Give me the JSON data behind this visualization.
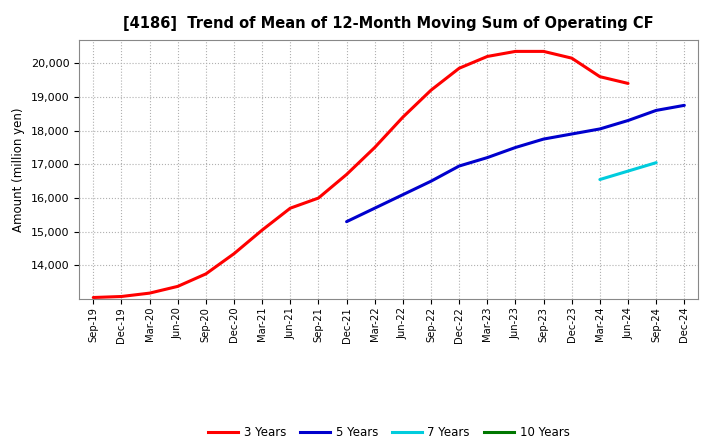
{
  "title": "[4186]  Trend of Mean of 12-Month Moving Sum of Operating CF",
  "ylabel": "Amount (million yen)",
  "background_color": "#ffffff",
  "grid_color": "#b0b0b0",
  "ylim": [
    13000,
    20700
  ],
  "yticks": [
    14000,
    15000,
    16000,
    17000,
    18000,
    19000,
    20000
  ],
  "x_labels": [
    "Sep-19",
    "Dec-19",
    "Mar-20",
    "Jun-20",
    "Sep-20",
    "Dec-20",
    "Mar-21",
    "Jun-21",
    "Sep-21",
    "Dec-21",
    "Mar-22",
    "Jun-22",
    "Sep-22",
    "Dec-22",
    "Mar-23",
    "Jun-23",
    "Sep-23",
    "Dec-23",
    "Mar-24",
    "Jun-24",
    "Sep-24",
    "Dec-24"
  ],
  "series_3y": {
    "label": "3 Years",
    "color": "#ff0000",
    "values": [
      13050,
      13080,
      13180,
      13380,
      13750,
      14350,
      15050,
      15700,
      16000,
      16700,
      17500,
      18400,
      19200,
      19850,
      20200,
      20350,
      20350,
      20150,
      19600,
      19400,
      null,
      null
    ]
  },
  "series_5y": {
    "label": "5 Years",
    "color": "#0000cd",
    "values": [
      null,
      null,
      null,
      null,
      null,
      null,
      null,
      null,
      null,
      15300,
      15700,
      16100,
      16500,
      16950,
      17200,
      17500,
      17750,
      17900,
      18050,
      18300,
      18600,
      18750
    ]
  },
  "series_7y": {
    "label": "7 Years",
    "color": "#00ccdd",
    "values": [
      null,
      null,
      null,
      null,
      null,
      null,
      null,
      null,
      null,
      null,
      null,
      null,
      null,
      null,
      null,
      null,
      null,
      null,
      16550,
      16800,
      17050,
      null
    ]
  },
  "series_10y": {
    "label": "10 Years",
    "color": "#007700",
    "values": [
      null,
      null,
      null,
      null,
      null,
      null,
      null,
      null,
      null,
      null,
      null,
      null,
      null,
      null,
      null,
      null,
      null,
      null,
      null,
      null,
      null,
      null
    ]
  }
}
